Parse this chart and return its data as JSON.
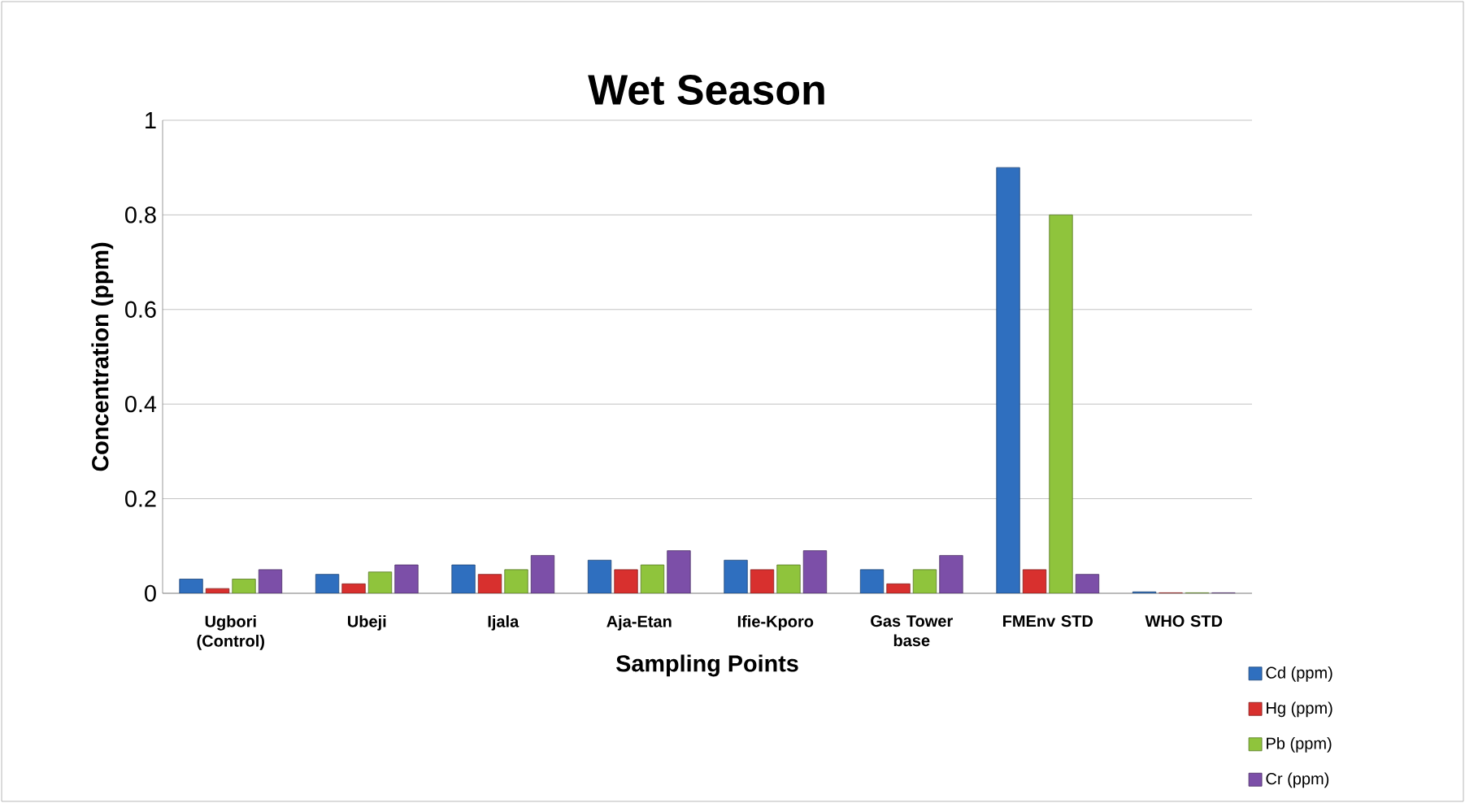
{
  "chart_data": {
    "type": "bar",
    "title": "Wet Season",
    "xlabel": "Sampling Points",
    "ylabel": "Concentration (ppm)",
    "categories": [
      "Ugbori (Control)",
      "Ubeji",
      "Ijala",
      "Aja-Etan",
      "Ifie-Kporo",
      "Gas Tower base",
      "FMEnv STD",
      "WHO STD"
    ],
    "series": [
      {
        "name": "Cd (ppm)",
        "color": "#2f6fbf",
        "values": [
          0.03,
          0.04,
          0.06,
          0.07,
          0.07,
          0.05,
          0.9,
          0.003
        ]
      },
      {
        "name": "Hg (ppm)",
        "color": "#d8302e",
        "values": [
          0.01,
          0.02,
          0.04,
          0.05,
          0.05,
          0.02,
          0.05,
          0.001
        ]
      },
      {
        "name": "Pb (ppm)",
        "color": "#8fc43c",
        "values": [
          0.03,
          0.045,
          0.05,
          0.06,
          0.06,
          0.05,
          0.8,
          0.001
        ]
      },
      {
        "name": "Cr (ppm)",
        "color": "#7c4fa8",
        "values": [
          0.05,
          0.06,
          0.08,
          0.09,
          0.09,
          0.08,
          0.04,
          0.001
        ]
      }
    ],
    "ylim": [
      0,
      1
    ],
    "yticks": [
      0,
      0.2,
      0.4,
      0.6,
      0.8,
      1
    ],
    "grid": "y",
    "legend": "bottom right"
  }
}
